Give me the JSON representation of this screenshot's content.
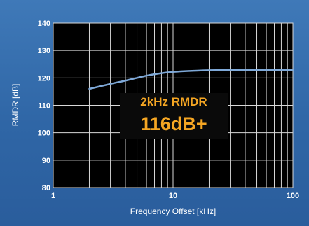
{
  "chart_data": {
    "type": "line",
    "xlabel": "Frequency Offset [kHz]",
    "ylabel": "RMDR [dB]",
    "xscale": "log",
    "xlim": [
      1,
      100
    ],
    "ylim": [
      80,
      140
    ],
    "x_ticks": [
      1,
      10,
      100
    ],
    "x_tick_labels": [
      "1",
      "10",
      "100"
    ],
    "y_ticks": [
      80,
      90,
      100,
      110,
      120,
      130,
      140
    ],
    "y_tick_labels": [
      "80",
      "90",
      "100",
      "110",
      "120",
      "130",
      "140"
    ],
    "grid": true,
    "series": [
      {
        "color": "#7fa9d8",
        "x": [
          2,
          3,
          4,
          5,
          6,
          8,
          10,
          15,
          20,
          30,
          50,
          70,
          100
        ],
        "y": [
          116,
          117.8,
          119.0,
          120.0,
          120.8,
          121.7,
          122.2,
          122.6,
          122.8,
          122.9,
          122.9,
          122.9,
          122.9
        ]
      }
    ],
    "annotation": {
      "title": "2kHz RMDR",
      "value": "116dB+",
      "color": "#f5a623"
    }
  }
}
